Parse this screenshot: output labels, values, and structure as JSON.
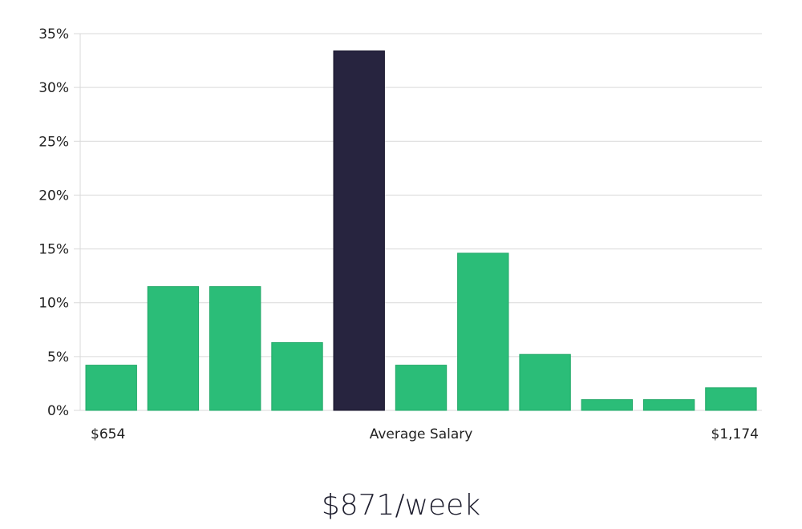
{
  "chart_data": {
    "type": "bar",
    "ylim": [
      0,
      35
    ],
    "yticks": [
      0,
      5,
      10,
      15,
      20,
      25,
      30,
      35
    ],
    "ytick_suffix": "%",
    "grid": true,
    "values": [
      4.2,
      11.5,
      11.5,
      6.3,
      33.4,
      4.2,
      14.6,
      5.2,
      1.0,
      1.0,
      2.1
    ],
    "highlight_index": 4,
    "x_labels": {
      "min": "$654",
      "center": "Average Salary",
      "max": "$1,174"
    }
  },
  "summary": "$871/week",
  "colors": {
    "bar": "#2bbd78",
    "highlight": "#27243f",
    "grid": "#d9d9d9",
    "text": "#222222"
  }
}
